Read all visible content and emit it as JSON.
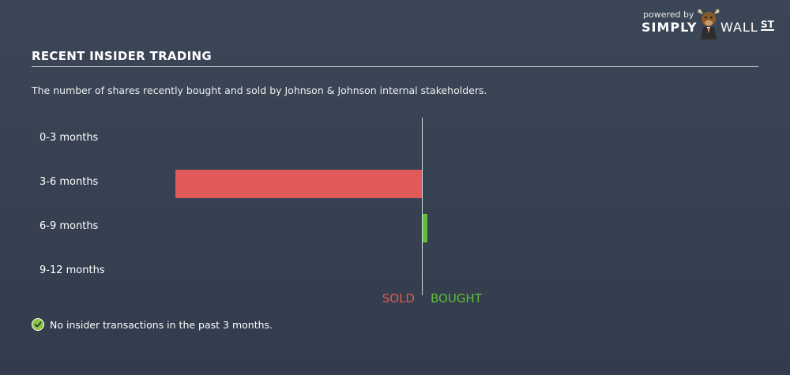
{
  "logo": {
    "powered": "powered by",
    "simply": "SIMPLY",
    "wall": "WALL",
    "st": "ST"
  },
  "header": {
    "title": "RECENT INSIDER TRADING",
    "subtitle": "The number of shares recently bought and sold by Johnson & Johnson internal stakeholders."
  },
  "chart_data": {
    "type": "bar",
    "orientation": "horizontal-diverging",
    "categories": [
      "0-3 months",
      "3-6 months",
      "6-9 months",
      "9-12 months"
    ],
    "series": [
      {
        "name": "SOLD",
        "color": "#e05a59",
        "values": [
          0,
          1,
          0,
          0
        ]
      },
      {
        "name": "BOUGHT",
        "color": "#5fbe3c",
        "values": [
          0,
          0,
          0.02,
          0
        ]
      }
    ],
    "legend": {
      "sold": "SOLD",
      "bought": "BOUGHT"
    }
  },
  "footer": {
    "note": "No insider transactions in the past 3 months."
  },
  "colors": {
    "sold": "#e05a59",
    "bought": "#5fbe3c",
    "check": "#8cc63f"
  }
}
